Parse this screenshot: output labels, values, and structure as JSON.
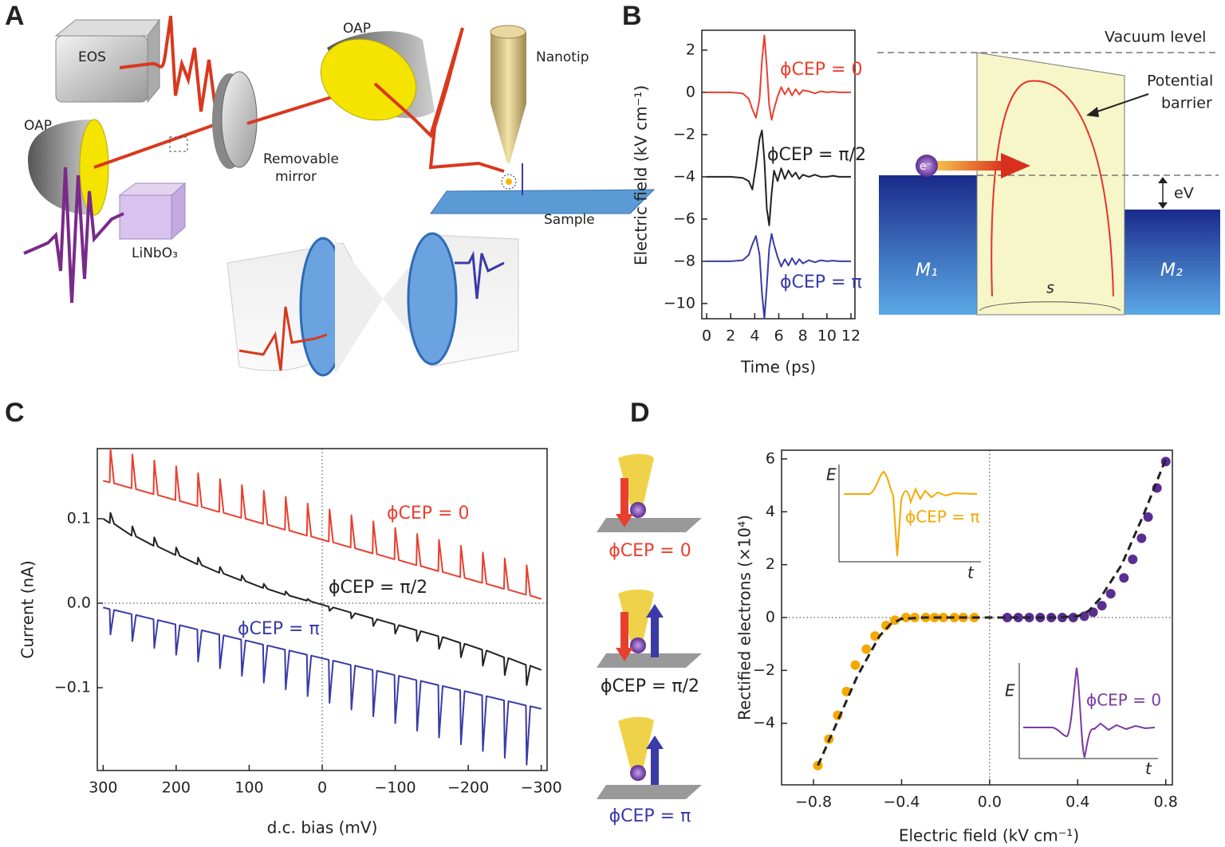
{
  "panel_labels": [
    "A",
    "B",
    "C",
    "D"
  ],
  "setup": {
    "labels": [
      "EOS",
      "OAP",
      "OAP",
      "Removable",
      "mirror",
      "Nanotip",
      "Sample",
      "LiNbO₃"
    ]
  },
  "band_diagram": {
    "labels": [
      "Vacuum level",
      "Potential",
      "barrier",
      "eV",
      "M₁",
      "M₂",
      "s",
      "e⁻"
    ]
  },
  "tip_icons": [
    {
      "label": "ϕCEP = 0",
      "color": "#e8402f"
    },
    {
      "label": "ϕCEP = π/2",
      "color": "#222222"
    },
    {
      "label": "ϕCEP = π",
      "color": "#3a3aa8"
    }
  ],
  "insets": [
    {
      "ylabel": "E",
      "xlabel": "t",
      "label": "ϕCEP = π",
      "color": "#f5a800"
    },
    {
      "ylabel": "E",
      "xlabel": "t",
      "label": "ϕCEP = 0",
      "color": "#7a3aa0"
    }
  ],
  "chart_data": [
    {
      "type": "line",
      "xlabel": "Time (ps)",
      "ylabel": "Electric field (kV cm⁻¹)",
      "x": [
        0,
        1,
        2,
        3,
        3.5,
        3.8,
        4.1,
        4.4,
        4.6,
        4.8,
        5.0,
        5.2,
        5.4,
        5.6,
        5.9,
        6.2,
        6.5,
        6.8,
        7.1,
        7.4,
        7.7,
        8,
        8.5,
        9,
        9.5,
        10,
        10.5,
        11,
        11.5,
        12
      ],
      "series": [
        {
          "name": "ϕCEP = 0",
          "color": "#e8402f",
          "values": [
            0,
            0,
            0,
            -0.05,
            -0.3,
            -0.8,
            -1.2,
            -0.3,
            1.5,
            2.7,
            1.2,
            -0.6,
            -1.3,
            -0.8,
            -0.2,
            0.25,
            -0.1,
            0.2,
            -0.15,
            0.15,
            -0.1,
            0.1,
            0.05,
            -0.05,
            0.05,
            0,
            0.03,
            0,
            0,
            0
          ]
        },
        {
          "name": "ϕCEP = π/2",
          "color": "#222222",
          "values": [
            -4,
            -4,
            -4,
            -4.05,
            -4.2,
            -4.6,
            -3.5,
            -2.2,
            -1.8,
            -3.2,
            -5.5,
            -6.3,
            -4.8,
            -3.7,
            -4.2,
            -3.6,
            -4.1,
            -3.7,
            -4.0,
            -3.8,
            -4.1,
            -3.9,
            -4.0,
            -3.9,
            -4.0,
            -4.0,
            -3.95,
            -4.0,
            -4.0,
            -4.0
          ]
        },
        {
          "name": "ϕCEP = π",
          "color": "#3a3aa8",
          "values": [
            -8,
            -8,
            -8,
            -7.95,
            -7.7,
            -7.2,
            -6.8,
            -7.7,
            -9.5,
            -10.7,
            -9.2,
            -7.4,
            -6.7,
            -7.2,
            -7.8,
            -8.25,
            -7.9,
            -8.2,
            -7.85,
            -8.15,
            -7.9,
            -8.1,
            -7.95,
            -8.05,
            -7.95,
            -8,
            -7.97,
            -8,
            -8,
            -8
          ]
        }
      ],
      "xlim": [
        -0.4,
        12.33
      ],
      "ylim": [
        -10.72,
        2.94
      ],
      "xticks": [
        0,
        2,
        4,
        6,
        8,
        10,
        12
      ],
      "yticks": [
        2,
        0,
        {
          "value": -2,
          "label": "−2"
        },
        {
          "value": -4,
          "label": "−4"
        },
        {
          "value": -6,
          "label": "−6"
        },
        {
          "value": -8,
          "label": "−8"
        },
        {
          "value": -10,
          "label": "−10"
        }
      ],
      "zero_lines": false
    },
    {
      "type": "line",
      "xlabel": "d.c. bias (mV)",
      "ylabel": "Current (nA)",
      "x": [
        300,
        291,
        290,
        285,
        261,
        260,
        255,
        231,
        230,
        225,
        201,
        200,
        195,
        171,
        170,
        165,
        141,
        140,
        135,
        111,
        110,
        105,
        81,
        80,
        75,
        51,
        50,
        45,
        21,
        20,
        15,
        -9,
        -10,
        -15,
        -39,
        -40,
        -45,
        -69,
        -70,
        -75,
        -99,
        -100,
        -105,
        -129,
        -130,
        -135,
        -159,
        -160,
        -165,
        -189,
        -190,
        -195,
        -219,
        -220,
        -225,
        -249,
        -250,
        -255,
        -279,
        -280,
        -285,
        -300
      ],
      "series": [
        {
          "name": "ϕCEP = 0",
          "color": "#e8402f",
          "values": [
            0.145,
            0.143,
            0.183,
            0.142,
            0.136,
            0.176,
            0.135,
            0.129,
            0.169,
            0.128,
            0.122,
            0.162,
            0.121,
            0.115,
            0.154,
            0.114,
            0.108,
            0.147,
            0.107,
            0.101,
            0.14,
            0.1,
            0.094,
            0.133,
            0.093,
            0.087,
            0.126,
            0.086,
            0.08,
            0.118,
            0.079,
            0.073,
            0.111,
            0.072,
            0.066,
            0.104,
            0.065,
            0.059,
            0.097,
            0.058,
            0.052,
            0.089,
            0.051,
            0.045,
            0.082,
            0.044,
            0.038,
            0.075,
            0.037,
            0.031,
            0.068,
            0.03,
            0.024,
            0.06,
            0.023,
            0.017,
            0.053,
            0.016,
            0.01,
            0.045,
            0.009,
            0.005
          ]
        },
        {
          "name": "ϕCEP = π/2",
          "color": "#222222",
          "values": [
            0.1,
            0.095,
            0.107,
            0.094,
            0.08,
            0.091,
            0.079,
            0.068,
            0.078,
            0.067,
            0.057,
            0.066,
            0.056,
            0.046,
            0.054,
            0.045,
            0.036,
            0.043,
            0.035,
            0.027,
            0.033,
            0.026,
            0.018,
            0.023,
            0.017,
            0.01,
            0.014,
            0.009,
            0.003,
            0.005,
            0.002,
            -0.004,
            -0.009,
            -0.005,
            -0.011,
            -0.018,
            -0.012,
            -0.018,
            -0.027,
            -0.019,
            -0.025,
            -0.036,
            -0.026,
            -0.032,
            -0.045,
            -0.033,
            -0.039,
            -0.054,
            -0.04,
            -0.047,
            -0.064,
            -0.048,
            -0.055,
            -0.074,
            -0.056,
            -0.064,
            -0.085,
            -0.065,
            -0.073,
            -0.097,
            -0.074,
            -0.079
          ]
        },
        {
          "name": "ϕCEP = π",
          "color": "#3a3aa8",
          "values": [
            -0.005,
            -0.007,
            -0.037,
            -0.008,
            -0.013,
            -0.045,
            -0.014,
            -0.019,
            -0.053,
            -0.02,
            -0.025,
            -0.061,
            -0.026,
            -0.031,
            -0.069,
            -0.032,
            -0.037,
            -0.077,
            -0.038,
            -0.043,
            -0.086,
            -0.044,
            -0.049,
            -0.094,
            -0.05,
            -0.055,
            -0.102,
            -0.056,
            -0.061,
            -0.11,
            -0.062,
            -0.067,
            -0.118,
            -0.068,
            -0.073,
            -0.126,
            -0.074,
            -0.079,
            -0.134,
            -0.08,
            -0.085,
            -0.142,
            -0.086,
            -0.091,
            -0.151,
            -0.092,
            -0.097,
            -0.159,
            -0.098,
            -0.103,
            -0.167,
            -0.104,
            -0.109,
            -0.175,
            -0.11,
            -0.115,
            -0.183,
            -0.116,
            -0.121,
            -0.191,
            -0.122,
            -0.125
          ]
        }
      ],
      "xlim": [
        308,
        -308
      ],
      "ylim": [
        -0.198,
        0.183
      ],
      "xticks": [
        300,
        200,
        100,
        0,
        {
          "value": -100,
          "label": "−100"
        },
        {
          "value": -200,
          "label": "−200"
        },
        {
          "value": -300,
          "label": "−300"
        }
      ],
      "yticks": [
        0.1,
        {
          "value": 0,
          "label": "0.0"
        },
        {
          "value": -0.1,
          "label": "−0.1"
        }
      ],
      "zero_lines": true
    },
    {
      "type": "scatter",
      "xlabel": "Electric field (kV cm⁻¹)",
      "ylabel": "Rectified electrons (×10⁴)",
      "series": [
        {
          "color": "#f5a800",
          "mode": "points",
          "x": [
            -0.78,
            -0.73,
            -0.69,
            -0.65,
            -0.61,
            -0.56,
            -0.52,
            -0.47,
            -0.43,
            -0.38,
            -0.34,
            -0.29,
            -0.25,
            -0.21,
            -0.16,
            -0.12,
            -0.07
          ],
          "values": [
            -5.6,
            -4.6,
            -3.7,
            -2.8,
            -1.8,
            -1.2,
            -0.7,
            -0.3,
            -0.1,
            0,
            0,
            0,
            0,
            0,
            0,
            0,
            0
          ]
        },
        {
          "color": "#5a2d91",
          "mode": "points",
          "x": [
            0.08,
            0.13,
            0.18,
            0.23,
            0.28,
            0.33,
            0.38,
            0.43,
            0.47,
            0.51,
            0.55,
            0.61,
            0.65,
            0.69,
            0.72,
            0.76,
            0.8
          ],
          "values": [
            0,
            0,
            0,
            0,
            0,
            0,
            0,
            0.05,
            0.2,
            0.45,
            0.9,
            1.5,
            2.2,
            3.0,
            3.8,
            4.9,
            5.9
          ]
        },
        {
          "color": "#222222",
          "mode": "dashed",
          "x": [
            -0.78,
            -0.7,
            -0.6,
            -0.5,
            -0.45,
            -0.4,
            -0.3,
            0.3,
            0.4,
            0.45,
            0.5,
            0.6,
            0.7,
            0.8
          ],
          "values": [
            -5.6,
            -4.1,
            -2.2,
            -0.7,
            -0.25,
            -0.05,
            0,
            0,
            0.05,
            0.25,
            0.7,
            2.0,
            3.9,
            6.0
          ]
        }
      ],
      "xlim": [
        -0.945,
        0.83
      ],
      "ylim": [
        -6.33,
        6.33
      ],
      "xticks": [
        {
          "value": -0.8,
          "label": "−0.8"
        },
        {
          "value": -0.4,
          "label": "−0.4"
        },
        {
          "value": 0,
          "label": "0.0"
        },
        0.4,
        0.8
      ],
      "yticks": [
        {
          "value": -4,
          "label": "−4"
        },
        {
          "value": -2,
          "label": "−2"
        },
        0,
        2,
        4,
        6
      ],
      "zero_lines": true
    }
  ]
}
